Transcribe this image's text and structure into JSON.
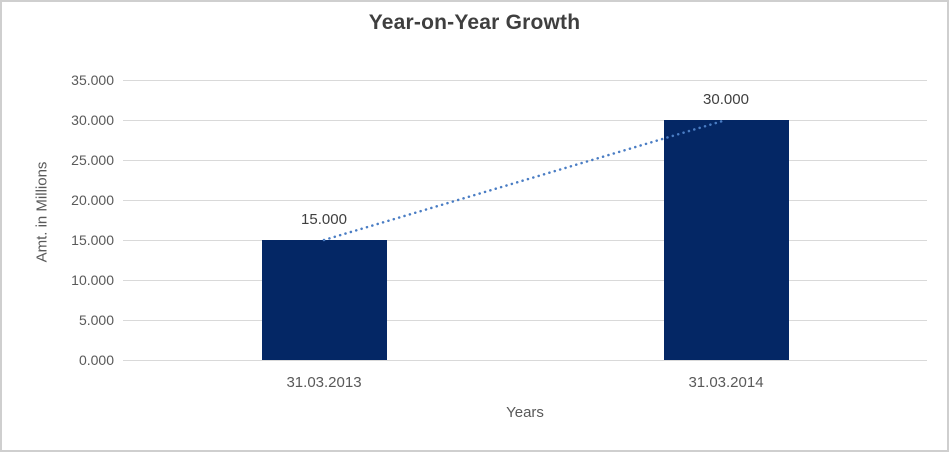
{
  "chart_data": {
    "type": "bar",
    "title": "Year-on-Year Growth",
    "categories": [
      "31.03.2013",
      "31.03.2014"
    ],
    "values": [
      15,
      30
    ],
    "data_labels": [
      "15.000",
      "30.000"
    ],
    "xlabel": "Years",
    "ylabel": "Amt. in Millions",
    "ylim": [
      0,
      35
    ],
    "ytick_step": 5,
    "ytick_labels": [
      "0.000",
      "5.000",
      "10.000",
      "15.000",
      "20.000",
      "25.000",
      "30.000",
      "35.000"
    ],
    "grid": true,
    "legend": "none",
    "trendline": {
      "style": "dotted",
      "connects": "bar-tops",
      "from_value": 15,
      "to_value": 30
    },
    "colors": {
      "bar": "#042765",
      "trendline": "#4a7dc4",
      "gridline": "#d9d9d9",
      "axis_text": "#595959",
      "title_text": "#3f3f3f",
      "frame_border": "#cfcfcf",
      "background": "#ffffff"
    }
  }
}
